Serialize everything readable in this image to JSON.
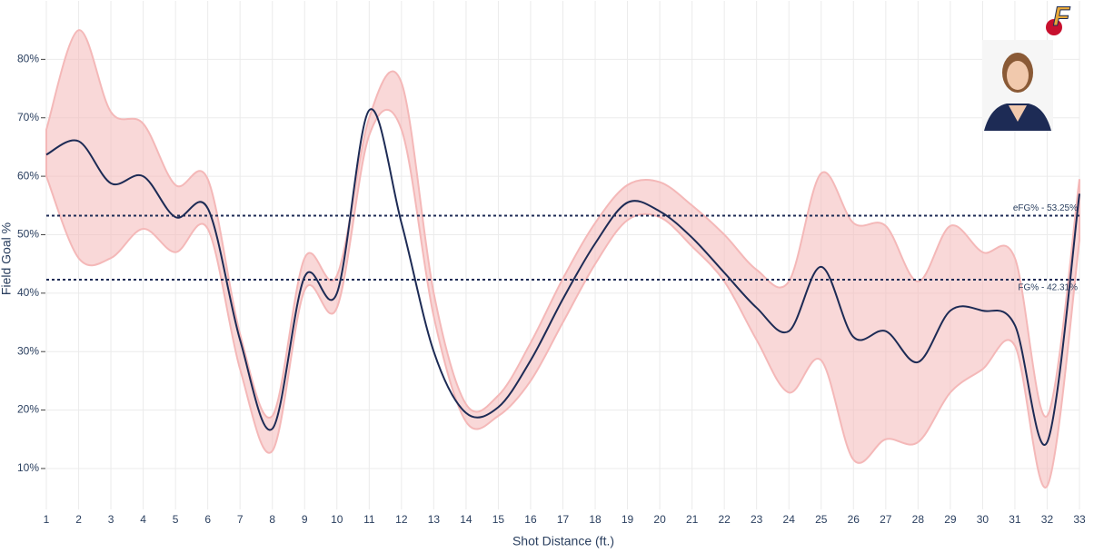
{
  "chart_data": {
    "type": "line",
    "x_label": "Shot Distance (ft.)",
    "y_label": "Field Goal %",
    "x": [
      1,
      2,
      3,
      4,
      5,
      6,
      7,
      8,
      9,
      10,
      11,
      12,
      13,
      14,
      15,
      16,
      17,
      18,
      19,
      20,
      21,
      22,
      23,
      24,
      25,
      26,
      27,
      28,
      29,
      30,
      31,
      32,
      33
    ],
    "values": [
      63.7,
      66,
      58.8,
      60,
      53,
      54.5,
      32,
      16.8,
      42.8,
      40,
      71.3,
      52,
      30,
      19.5,
      20.5,
      28.5,
      39,
      48.5,
      55.5,
      54,
      49.5,
      43.5,
      37.5,
      33.5,
      44.5,
      32.5,
      33.5,
      28.2,
      37,
      37,
      34.5,
      14.5,
      57
    ],
    "band_upper": [
      68,
      85,
      71,
      69,
      58.5,
      59.5,
      33,
      19,
      46,
      43,
      70,
      76,
      40,
      21,
      22.5,
      31.5,
      42.5,
      52,
      58.5,
      59,
      55,
      50,
      44,
      42,
      60.5,
      52,
      51.5,
      42,
      51.5,
      47,
      46,
      19,
      59.5
    ],
    "band_lower": [
      60,
      46,
      46,
      51,
      47,
      51,
      27,
      13,
      40.5,
      37.5,
      67,
      68,
      36,
      18,
      19,
      25,
      35,
      45,
      52.5,
      53,
      48,
      42,
      32,
      23,
      28.5,
      11.5,
      15,
      14.5,
      23,
      27,
      31,
      7,
      49
    ],
    "color": "#1d2b55",
    "band_color": "#f4b8b8",
    "reference_lines": [
      {
        "value": 53.25,
        "label": "eFG% - 53.25%"
      },
      {
        "value": 42.31,
        "label": "FG% - 42.31%"
      }
    ],
    "reference_color": "#1d2b55",
    "xlim": [
      1,
      33
    ],
    "ylim": [
      3,
      90
    ],
    "xticks": [
      1,
      2,
      3,
      4,
      5,
      6,
      7,
      8,
      9,
      10,
      11,
      12,
      13,
      14,
      15,
      16,
      17,
      18,
      19,
      20,
      21,
      22,
      23,
      24,
      25,
      26,
      27,
      28,
      29,
      30,
      31,
      32,
      33
    ],
    "yticks": [
      {
        "value": 10,
        "label": "10%"
      },
      {
        "value": 20,
        "label": "20%"
      },
      {
        "value": 30,
        "label": "30%"
      },
      {
        "value": 40,
        "label": "40%"
      },
      {
        "value": 50,
        "label": "50%"
      },
      {
        "value": 60,
        "label": "60%"
      },
      {
        "value": 70,
        "label": "70%"
      },
      {
        "value": 80,
        "label": "80%"
      }
    ],
    "grid": true
  }
}
